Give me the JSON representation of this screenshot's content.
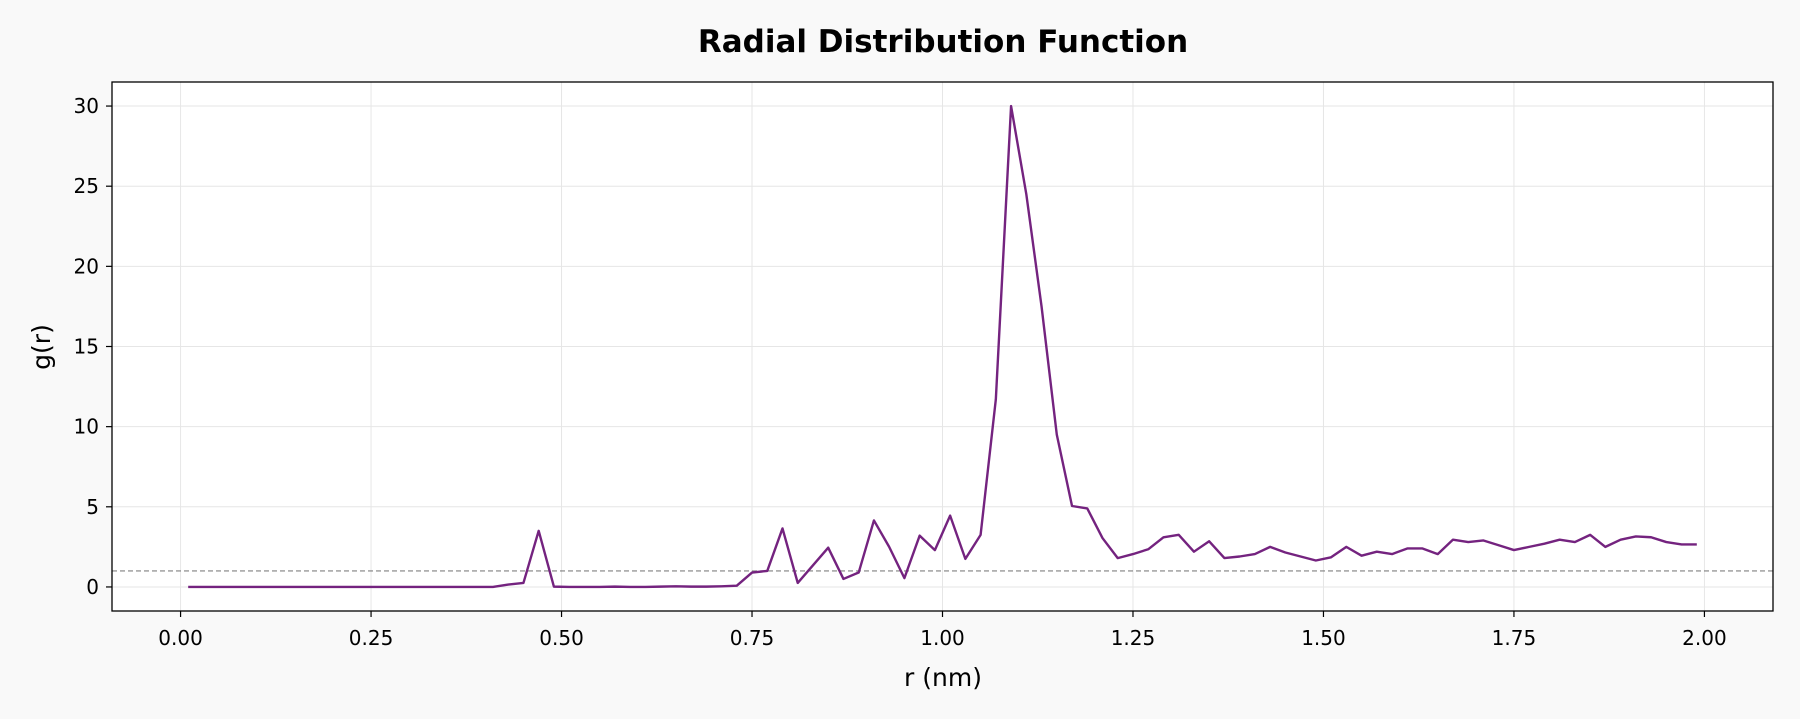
{
  "chart_data": {
    "type": "line",
    "title": "Radial Distribution Function",
    "xlabel": "r (nm)",
    "ylabel": "g(r)",
    "xlim": [
      -0.09,
      2.09
    ],
    "ylim": [
      -1.5,
      31.5
    ],
    "xticks": [
      0.0,
      0.25,
      0.5,
      0.75,
      1.0,
      1.25,
      1.5,
      1.75,
      2.0
    ],
    "xtick_labels": [
      "0.00",
      "0.25",
      "0.50",
      "0.75",
      "1.00",
      "1.25",
      "1.50",
      "1.75",
      "2.00"
    ],
    "yticks": [
      0,
      5,
      10,
      15,
      20,
      25,
      30
    ],
    "ytick_labels": [
      "0",
      "5",
      "10",
      "15",
      "20",
      "25",
      "30"
    ],
    "grid": true,
    "reference_line": {
      "y": 1.0,
      "color": "#808080",
      "style": "dashed"
    },
    "series": [
      {
        "color": "#74237f",
        "x": [
          0.01,
          0.03,
          0.05,
          0.07,
          0.09,
          0.11,
          0.13,
          0.15,
          0.17,
          0.19,
          0.21,
          0.23,
          0.25,
          0.27,
          0.29,
          0.31,
          0.33,
          0.35,
          0.37,
          0.39,
          0.41,
          0.43,
          0.45,
          0.47,
          0.49,
          0.51,
          0.53,
          0.55,
          0.57,
          0.59,
          0.61,
          0.63,
          0.65,
          0.67,
          0.69,
          0.71,
          0.73,
          0.75,
          0.77,
          0.79,
          0.81,
          0.83,
          0.85,
          0.87,
          0.89,
          0.91,
          0.93,
          0.95,
          0.97,
          0.99,
          1.01,
          1.03,
          1.05,
          1.07,
          1.09,
          1.11,
          1.13,
          1.15,
          1.17,
          1.19,
          1.21,
          1.23,
          1.25,
          1.27,
          1.29,
          1.31,
          1.33,
          1.35,
          1.37,
          1.39,
          1.41,
          1.43,
          1.45,
          1.47,
          1.49,
          1.51,
          1.53,
          1.55,
          1.57,
          1.59,
          1.61,
          1.63,
          1.65,
          1.67,
          1.69,
          1.71,
          1.73,
          1.75,
          1.77,
          1.79,
          1.81,
          1.83,
          1.85,
          1.87,
          1.89,
          1.91,
          1.93,
          1.95,
          1.97,
          1.99
        ],
        "y": [
          0,
          0,
          0,
          0,
          0,
          0,
          0,
          0,
          0,
          0,
          0,
          0,
          0,
          0,
          0,
          0,
          0,
          0,
          0,
          0,
          0,
          0.15,
          0.25,
          3.5,
          0.02,
          0,
          0,
          0,
          0.02,
          0,
          0,
          0.02,
          0.04,
          0.02,
          0.02,
          0.04,
          0.08,
          0.9,
          1.0,
          3.65,
          0.25,
          1.35,
          2.45,
          0.5,
          0.9,
          4.15,
          2.5,
          0.55,
          3.2,
          2.3,
          4.45,
          1.75,
          3.25,
          11.7,
          30.0,
          24.5,
          17.5,
          9.5,
          5.05,
          4.9,
          3.05,
          1.8,
          2.05,
          2.35,
          3.1,
          3.25,
          2.2,
          2.85,
          1.8,
          1.9,
          2.05,
          2.5,
          2.15,
          1.9,
          1.65,
          1.85,
          2.5,
          1.95,
          2.2,
          2.05,
          2.4,
          2.4,
          2.05,
          2.95,
          2.8,
          2.9,
          2.6,
          2.3,
          2.5,
          2.7,
          2.95,
          2.8,
          3.25,
          2.5,
          2.95,
          3.15,
          3.1,
          2.8,
          2.65,
          2.65
        ]
      }
    ]
  }
}
